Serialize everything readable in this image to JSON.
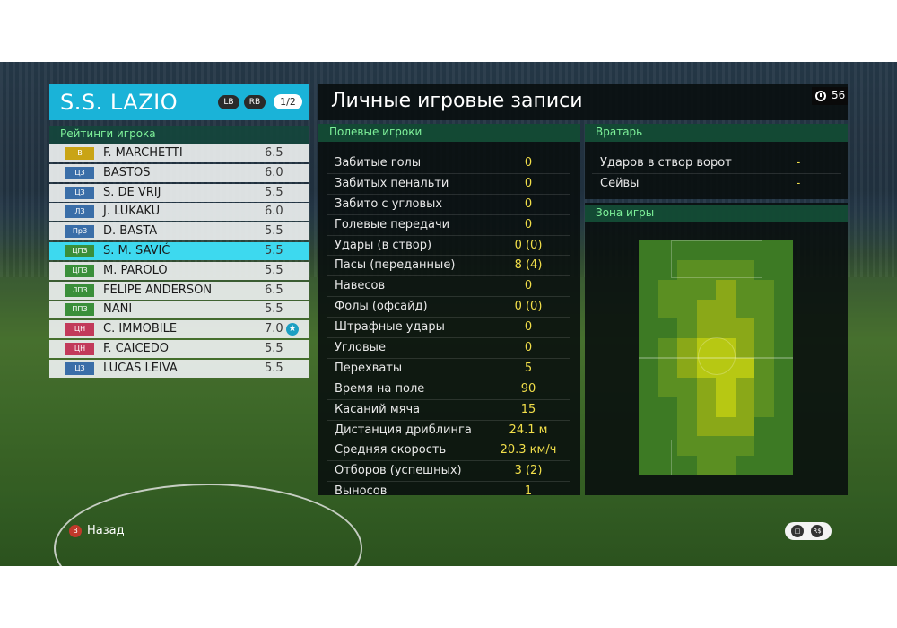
{
  "team": {
    "name": "S.S. LAZIO",
    "lb": "LB",
    "rb": "RB",
    "page": "1/2",
    "section": "Рейтинги игрока"
  },
  "players": [
    {
      "pos": "В",
      "pos_color": "#c9a415",
      "name": "F. MARCHETTI",
      "rating": "6.5"
    },
    {
      "pos": "ЦЗ",
      "pos_color": "#3a6ea8",
      "name": "BASTOS",
      "rating": "6.0"
    },
    {
      "pos": "ЦЗ",
      "pos_color": "#3a6ea8",
      "name": "S. DE VRIJ",
      "rating": "5.5"
    },
    {
      "pos": "ЛЗ",
      "pos_color": "#3a6ea8",
      "name": "J. LUKAKU",
      "rating": "6.0"
    },
    {
      "pos": "ПрЗ",
      "pos_color": "#3a6ea8",
      "name": "D. BASTA",
      "rating": "5.5"
    },
    {
      "pos": "ЦПЗ",
      "pos_color": "#3a8f3a",
      "name": "S. M. SAVIĆ",
      "rating": "5.5",
      "selected": true
    },
    {
      "pos": "ЦПЗ",
      "pos_color": "#3a8f3a",
      "name": "M. PAROLO",
      "rating": "5.5"
    },
    {
      "pos": "ЛПЗ",
      "pos_color": "#3a8f3a",
      "name": "FELIPE ANDERSON",
      "rating": "6.5"
    },
    {
      "pos": "ППЗ",
      "pos_color": "#3a8f3a",
      "name": "NANI",
      "rating": "5.5"
    },
    {
      "pos": "ЦН",
      "pos_color": "#c23a5a",
      "name": "C. IMMOBILE",
      "rating": "7.0",
      "star": true
    },
    {
      "pos": "ЦН",
      "pos_color": "#c23a5a",
      "name": "F. CAICEDO",
      "rating": "5.5"
    },
    {
      "pos": "ЦЗ",
      "pos_color": "#3a6ea8",
      "name": "LUCAS LEIVA",
      "rating": "5.5"
    }
  ],
  "main": {
    "title": "Личные игровые записи",
    "timer": "56",
    "field_header": "Полевые игроки",
    "gk_header": "Вратарь",
    "zone_header": "Зона игры"
  },
  "field_stats": [
    {
      "label": "Забитые голы",
      "value": "0"
    },
    {
      "label": "Забитых пенальти",
      "value": "0"
    },
    {
      "label": "Забито с угловых",
      "value": "0"
    },
    {
      "label": "Голевые передачи",
      "value": "0"
    },
    {
      "label": "Удары (в створ)",
      "value": "0 (0)"
    },
    {
      "label": "Пасы (переданные)",
      "value": "8 (4)"
    },
    {
      "label": "Навесов",
      "value": "0"
    },
    {
      "label": "Фолы (офсайд)",
      "value": "0 (0)"
    },
    {
      "label": "Штрафные удары",
      "value": "0"
    },
    {
      "label": "Угловые",
      "value": "0"
    },
    {
      "label": "Перехваты",
      "value": "5"
    },
    {
      "label": "Время на поле",
      "value": "90"
    },
    {
      "label": "Касаний мяча",
      "value": "15"
    },
    {
      "label": "Дистанция дриблинга",
      "value": "24.1 м"
    },
    {
      "label": "Средняя скорость",
      "value": "20.3 км/ч"
    },
    {
      "label": "Отборов (успешных)",
      "value": "3 (2)"
    },
    {
      "label": "Выносов",
      "value": "1"
    }
  ],
  "gk_stats": [
    {
      "label": "Ударов в створ ворот",
      "value": "-"
    },
    {
      "label": "Сейвы",
      "value": "-"
    }
  ],
  "footer": {
    "back_button": "B",
    "back_label": "Назад",
    "chat_icon": "chat-icon",
    "rs_label": "R$"
  },
  "colors": {
    "accent": "#1ab3d8",
    "selected_row": "#3dd9ef",
    "value_yellow": "#f2df4a",
    "section_green": "#7ef29a"
  }
}
